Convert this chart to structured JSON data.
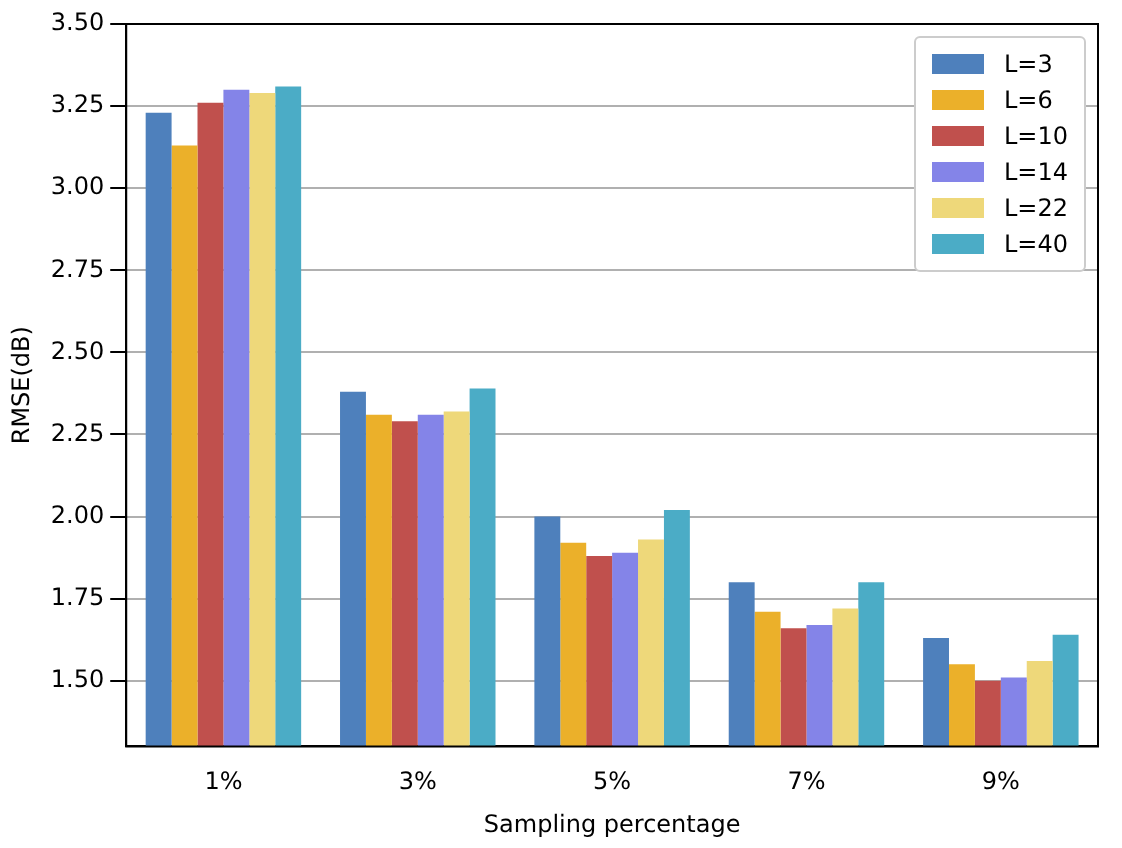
{
  "chart_data": {
    "type": "bar",
    "xlabel": "Sampling percentage",
    "ylabel": "RMSE(dB)",
    "categories": [
      "1%",
      "3%",
      "5%",
      "7%",
      "9%"
    ],
    "series": [
      {
        "name": "L=3",
        "color": "#4e80bc",
        "values": [
          3.23,
          2.38,
          2.0,
          1.8,
          1.63
        ]
      },
      {
        "name": "L=6",
        "color": "#ebb02a",
        "values": [
          3.13,
          2.31,
          1.92,
          1.71,
          1.55
        ]
      },
      {
        "name": "L=10",
        "color": "#c0504d",
        "values": [
          3.26,
          2.29,
          1.88,
          1.66,
          1.5
        ]
      },
      {
        "name": "L=14",
        "color": "#8484e8",
        "values": [
          3.3,
          2.31,
          1.89,
          1.67,
          1.51
        ]
      },
      {
        "name": "L=22",
        "color": "#eed87a",
        "values": [
          3.29,
          2.32,
          1.93,
          1.72,
          1.56
        ]
      },
      {
        "name": "L=40",
        "color": "#4bacc6",
        "values": [
          3.31,
          2.39,
          2.02,
          1.8,
          1.64
        ]
      }
    ],
    "ylim": [
      1.3,
      3.5
    ],
    "yticks": [
      {
        "value": 1.5,
        "label": "1.50"
      },
      1.75,
      {
        "value": 2,
        "label": "2.00"
      },
      2.25,
      {
        "value": 2.5,
        "label": "2.50"
      },
      2.75,
      {
        "value": 3,
        "label": "3.00"
      },
      3.25,
      {
        "value": 3.5,
        "label": "3.50"
      }
    ],
    "grid": "y",
    "legend": "top right"
  }
}
